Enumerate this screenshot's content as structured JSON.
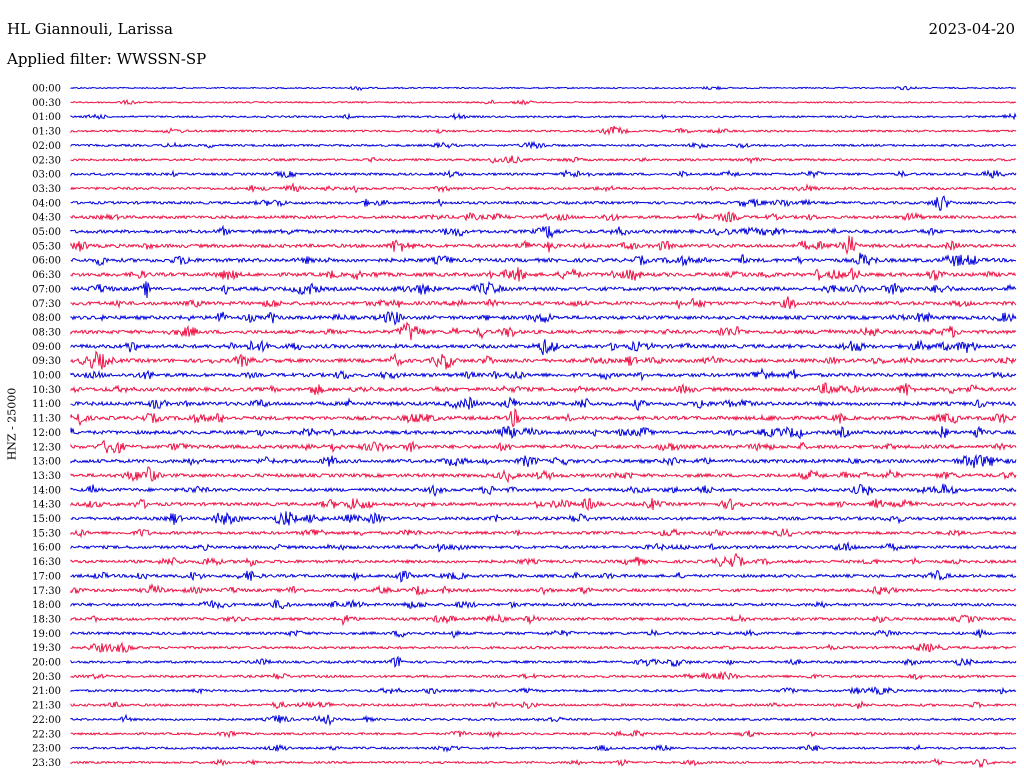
{
  "header": {
    "station": "HL Giannouli, Larissa",
    "date": "2023-04-20",
    "filter": "Applied filter: WWSSN-SP"
  },
  "chart_data": {
    "type": "line",
    "title": "HL Giannouli, Larissa",
    "subtitle": "Applied filter: WWSSN-SP",
    "ylabel": "HNZ - 25000",
    "xlabel": "",
    "grid": false,
    "legend": "none",
    "colors": {
      "even_trace": "#0000dd",
      "odd_trace": "#ee1144"
    },
    "rows": [
      "00:00",
      "00:30",
      "01:00",
      "01:30",
      "02:00",
      "02:30",
      "03:00",
      "03:30",
      "04:00",
      "04:30",
      "05:00",
      "05:30",
      "06:00",
      "06:30",
      "07:00",
      "07:30",
      "08:00",
      "08:30",
      "09:00",
      "09:30",
      "10:00",
      "10:30",
      "11:00",
      "11:30",
      "12:00",
      "12:30",
      "13:00",
      "13:30",
      "14:00",
      "14:30",
      "15:00",
      "15:30",
      "16:00",
      "16:30",
      "17:00",
      "17:30",
      "18:00",
      "18:30",
      "19:00",
      "19:30",
      "20:00",
      "20:30",
      "21:00",
      "21:30",
      "22:00",
      "22:30",
      "23:00",
      "23:30"
    ],
    "activity": [
      0.05,
      0.08,
      0.2,
      0.25,
      0.3,
      0.35,
      0.4,
      0.45,
      0.5,
      0.6,
      0.7,
      0.75,
      0.85,
      0.85,
      0.85,
      0.8,
      0.8,
      0.8,
      0.85,
      0.85,
      0.8,
      0.85,
      0.85,
      0.85,
      0.8,
      0.8,
      0.8,
      0.75,
      0.7,
      0.7,
      0.65,
      0.6,
      0.6,
      0.6,
      0.6,
      0.6,
      0.55,
      0.55,
      0.5,
      0.45,
      0.4,
      0.4,
      0.4,
      0.4,
      0.35,
      0.3,
      0.3,
      0.3
    ]
  }
}
